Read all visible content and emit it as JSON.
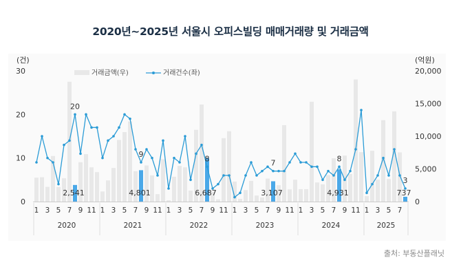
{
  "chart_data": {
    "type": "bar+line",
    "title": "2020년~2025년 서울시 오피스빌딩 매매거래량 및 거래금액",
    "left_axis": {
      "unit": "(건)",
      "range": [
        0,
        30
      ],
      "ticks": [
        0,
        10,
        20,
        30
      ]
    },
    "right_axis": {
      "unit": "(억원)",
      "range": [
        0,
        20000
      ],
      "ticks": [
        "0",
        "5,000",
        "10,000",
        "15,000",
        "20,000"
      ],
      "tick_values": [
        0,
        5000,
        10000,
        15000,
        20000
      ]
    },
    "legend": {
      "placement": "top-left",
      "bar_label": "거래금액(우)",
      "line_label": "거래건수(좌)"
    },
    "years": [
      "2020",
      "2021",
      "2022",
      "2023",
      "2024",
      "2025"
    ],
    "months_per_year": [
      12,
      12,
      12,
      12,
      12,
      8
    ],
    "month_tick_labels": [
      "1",
      "3",
      "5",
      "7",
      "9",
      "11"
    ],
    "series": [
      {
        "name": "거래금액(우)",
        "type": "bar",
        "axis": "right",
        "values": [
          3660,
          3730,
          2250,
          6970,
          2220,
          3560,
          18340,
          2541,
          6020,
          7250,
          5240,
          4500,
          1550,
          3240,
          5140,
          9430,
          10630,
          12250,
          4650,
          4801,
          5530,
          4010,
          1130,
          6480,
          210,
          3800,
          5460,
          5240,
          1690,
          10980,
          14850,
          6687,
          1500,
          350,
          9700,
          10770,
          3060,
          420,
          1760,
          3170,
          920,
          630,
          3520,
          3107,
          2500,
          11690,
          1870,
          3340,
          1900,
          1900,
          15280,
          2920,
          2640,
          4050,
          6620,
          4931,
          7040,
          4220,
          18690,
          7570,
          845,
          7780,
          3340,
          12460,
          3450,
          13800,
          7530,
          737
        ]
      },
      {
        "name": "거래건수(좌)",
        "type": "line",
        "axis": "left",
        "values": [
          9,
          15,
          10,
          9,
          4,
          13,
          14,
          20,
          11,
          20,
          17,
          17,
          10,
          14,
          15,
          17,
          20,
          19,
          12,
          9,
          12,
          10,
          6,
          14,
          3,
          10,
          9,
          15,
          5,
          11,
          13,
          8,
          3,
          4,
          6,
          6,
          1,
          2,
          6,
          9,
          6,
          7,
          8,
          7,
          7,
          7,
          9,
          11,
          9,
          9,
          8,
          8,
          5,
          7,
          6,
          8,
          5,
          7,
          12,
          21,
          2,
          4,
          6,
          10,
          6,
          12,
          6,
          3
        ]
      }
    ],
    "annotations": [
      {
        "year": "2020",
        "month": 8,
        "count_label": "20",
        "amount_label": "2,541"
      },
      {
        "year": "2021",
        "month": 8,
        "count_label": "9",
        "amount_label": "4,801"
      },
      {
        "year": "2022",
        "month": 8,
        "count_label": "8",
        "amount_label": "6,687"
      },
      {
        "year": "2023",
        "month": 8,
        "count_label": "7",
        "amount_label": "3,107"
      },
      {
        "year": "2024",
        "month": 8,
        "count_label": "8",
        "amount_label": "4,931"
      },
      {
        "year": "2025",
        "month": 8,
        "count_label": "3",
        "amount_label": "737"
      }
    ],
    "colors": {
      "bar": "#e8e8e8",
      "bar_highlight": "#4aa8e8",
      "line": "#2a9bd6",
      "title": "#1b2f45"
    },
    "grid": false
  },
  "source": "출처: 부동산플래닛"
}
